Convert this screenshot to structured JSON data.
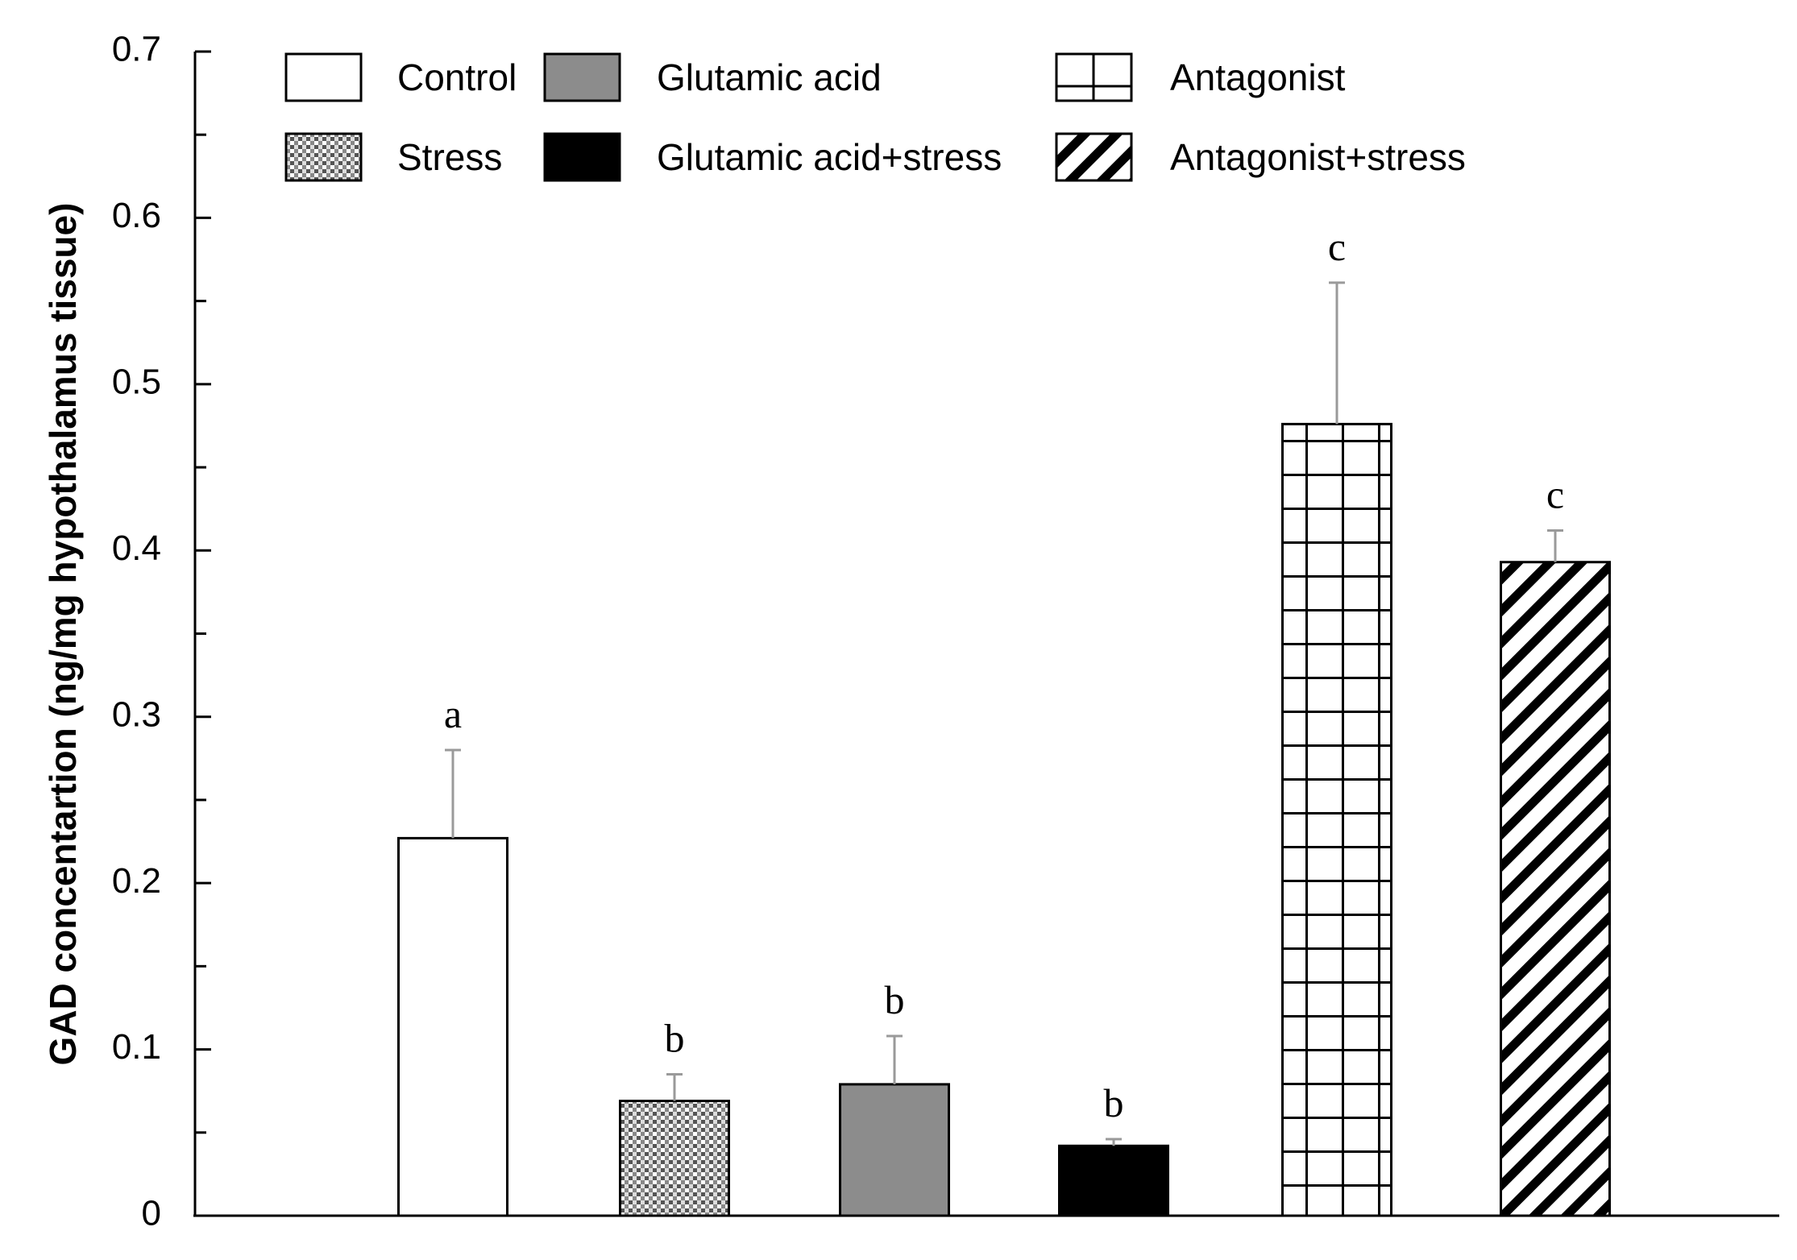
{
  "chart_data": {
    "type": "bar",
    "title": "",
    "xlabel": "",
    "ylabel": "GAD concentartion (ng/mg hypothalamus tissue)",
    "ylim": [
      0,
      0.7
    ],
    "yticks": [
      "0",
      "0.1",
      "0.2",
      "0.3",
      "0.4",
      "0.5",
      "0.6",
      "0.7"
    ],
    "grid": false,
    "legend_position": "top",
    "categories": [
      "Control",
      "Stress",
      "Glutamic acid",
      "Glutamic acid+stress",
      "Antagonist",
      "Antagonist+stress"
    ],
    "values": [
      0.227,
      0.069,
      0.079,
      0.042,
      0.476,
      0.393
    ],
    "errors": [
      0.053,
      0.016,
      0.029,
      0.004,
      0.085,
      0.019
    ],
    "significance": [
      "a",
      "b",
      "b",
      "b",
      "c",
      "c"
    ],
    "patterns": [
      "blank",
      "checker",
      "solid-gray",
      "solid-black",
      "grid",
      "diagonal"
    ]
  }
}
